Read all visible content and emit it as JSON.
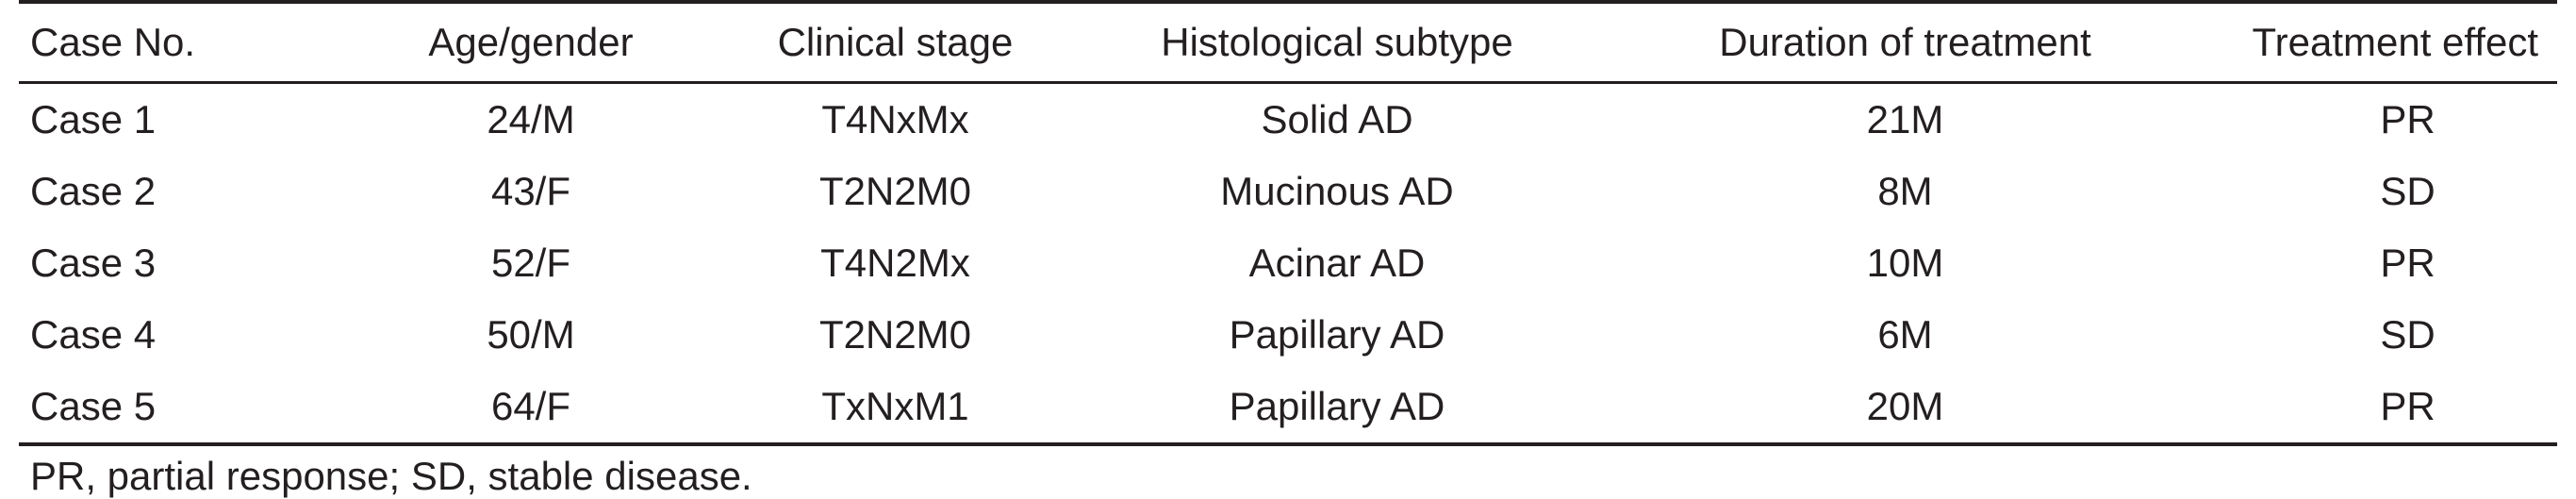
{
  "table": {
    "headers": [
      "Case No.",
      "Age/gender",
      "Clinical stage",
      "Histological subtype",
      "Duration of treatment",
      "Treatment effect"
    ],
    "rows": [
      [
        "Case 1",
        "24/M",
        "T4NxMx",
        "Solid AD",
        "21M",
        "PR"
      ],
      [
        "Case 2",
        "43/F",
        "T2N2M0",
        "Mucinous AD",
        "8M",
        "SD"
      ],
      [
        "Case 3",
        "52/F",
        "T4N2Mx",
        "Acinar AD",
        "10M",
        "PR"
      ],
      [
        "Case 4",
        "50/M",
        "T2N2M0",
        "Papillary AD",
        "6M",
        "SD"
      ],
      [
        "Case 5",
        "64/F",
        "TxNxM1",
        "Papillary AD",
        "20M",
        "PR"
      ]
    ]
  },
  "footnote": "PR, partial response; SD, stable disease."
}
